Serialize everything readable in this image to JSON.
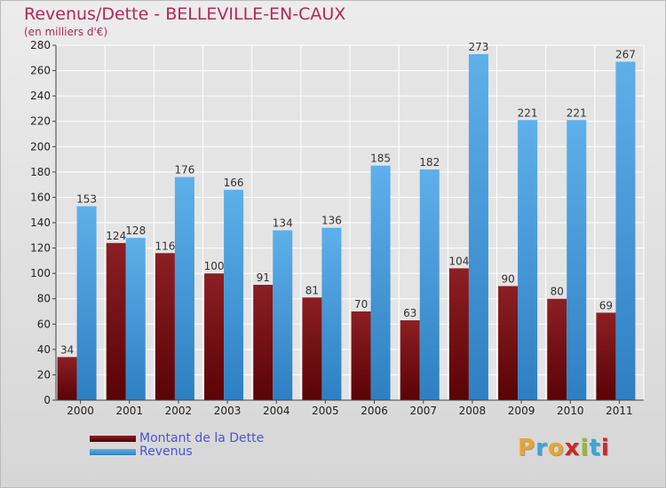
{
  "title": "Revenus/Dette - BELLEVILLE-EN-CAUX",
  "subtitle": "(en milliers d'€)",
  "logo": "Proxiti",
  "colors": {
    "background": "#dcdcdc",
    "title": "#b0285c",
    "legend_text": "#4a55d8",
    "dette": "#7a1214",
    "revenus": "#3f98dc"
  },
  "chart_data": {
    "type": "bar",
    "title": "Revenus/Dette - BELLEVILLE-EN-CAUX",
    "subtitle": "(en milliers d'€)",
    "categories": [
      "2000",
      "2001",
      "2002",
      "2003",
      "2004",
      "2005",
      "2006",
      "2007",
      "2008",
      "2009",
      "2010",
      "2011"
    ],
    "series": [
      {
        "name": "Montant de la Dette",
        "color": "#7a1214",
        "values": [
          34,
          124,
          116,
          100,
          91,
          81,
          70,
          63,
          104,
          90,
          80,
          69
        ]
      },
      {
        "name": "Revenus",
        "color": "#3f98dc",
        "values": [
          153,
          128,
          176,
          166,
          134,
          136,
          185,
          182,
          273,
          221,
          221,
          267
        ]
      }
    ],
    "ylim": [
      0,
      280
    ],
    "yticks": [
      0,
      20,
      40,
      60,
      80,
      100,
      120,
      140,
      160,
      180,
      200,
      220,
      240,
      260,
      280
    ],
    "grid": true,
    "legend": "bottom-left",
    "data_labels": true
  }
}
